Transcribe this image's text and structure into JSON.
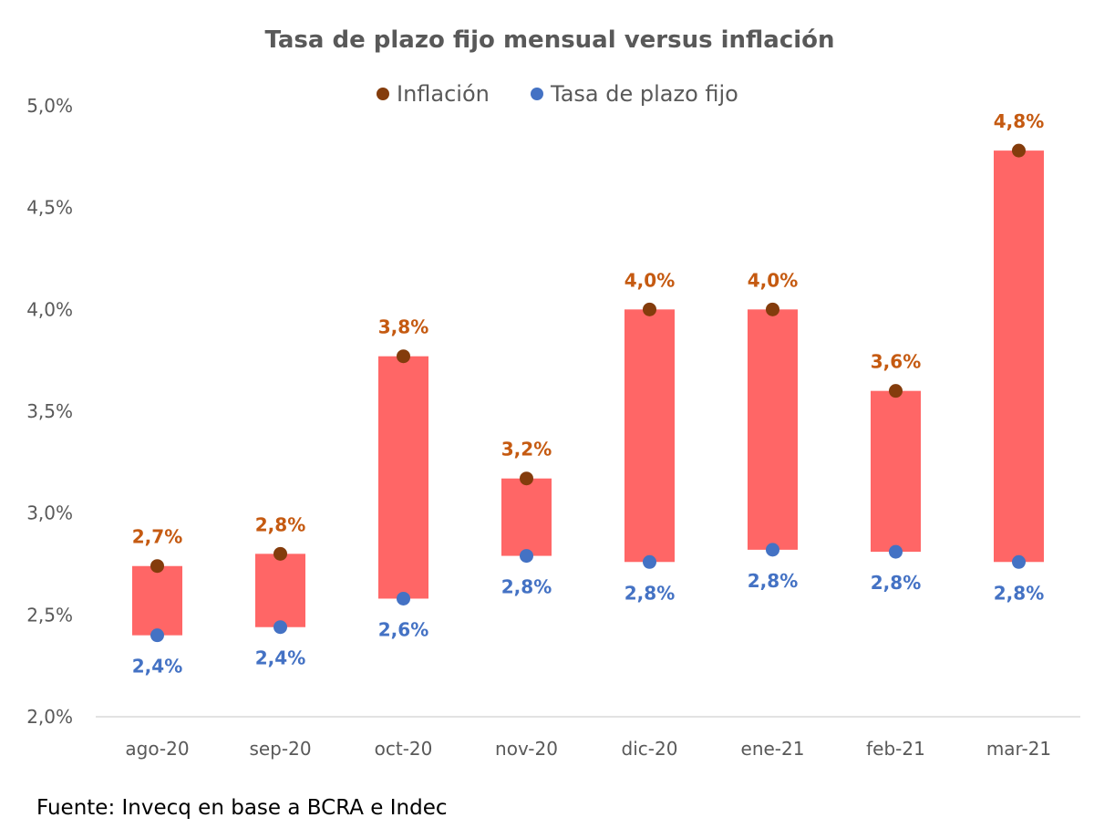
{
  "chart_data": {
    "type": "bar",
    "title": "Tasa de plazo fijo mensual versus inflación",
    "categories": [
      "ago-20",
      "sep-20",
      "oct-20",
      "nov-20",
      "dic-20",
      "ene-21",
      "feb-21",
      "mar-21"
    ],
    "series": [
      {
        "name": "Inflación",
        "values": [
          2.74,
          2.8,
          3.77,
          3.17,
          4.0,
          4.0,
          3.6,
          4.78
        ],
        "labels": [
          "2,7%",
          "2,8%",
          "3,8%",
          "3,2%",
          "4,0%",
          "4,0%",
          "3,6%",
          "4,8%"
        ]
      },
      {
        "name": "Tasa de plazo fijo",
        "values": [
          2.4,
          2.44,
          2.58,
          2.79,
          2.76,
          2.82,
          2.81,
          2.76
        ],
        "labels": [
          "2,4%",
          "2,4%",
          "2,6%",
          "2,8%",
          "2,8%",
          "2,8%",
          "2,8%",
          "2,8%"
        ]
      }
    ],
    "ylim": [
      2.0,
      5.0
    ],
    "yticks": [
      "2,0%",
      "2,5%",
      "3,0%",
      "3,5%",
      "4,0%",
      "4,5%",
      "5,0%"
    ],
    "xlabel": "",
    "ylabel": "",
    "legend_position": "top",
    "grid": false
  },
  "colors": {
    "inflacion": "#843C0C",
    "inflacion_label": "#C55A11",
    "tasa": "#4472C4",
    "range_bar": "#FF6666",
    "axis": "#D9D9D9",
    "text": "#595959"
  },
  "source": "Fuente: Invecq en base a BCRA e Indec"
}
